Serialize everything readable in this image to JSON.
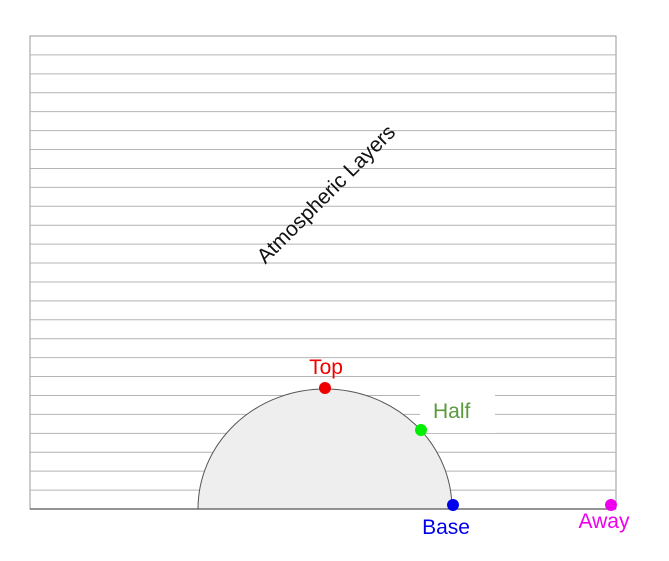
{
  "diagram": {
    "title": "Atmospheric Layers",
    "layer_count": 25,
    "points": [
      {
        "id": "top",
        "label": "Top",
        "color": "#ee0000"
      },
      {
        "id": "half",
        "label": "Half",
        "color": "#00ee00",
        "label_color": "#5a9a3a"
      },
      {
        "id": "base",
        "label": "Base",
        "color": "#0000ee"
      },
      {
        "id": "away",
        "label": "Away",
        "color": "#ee00ee"
      }
    ],
    "colors": {
      "layer_line": "#b4b4b4",
      "frame": "#999999",
      "planet_fill": "#eeeeee",
      "planet_stroke": "#555555",
      "ground": "#555555"
    }
  }
}
